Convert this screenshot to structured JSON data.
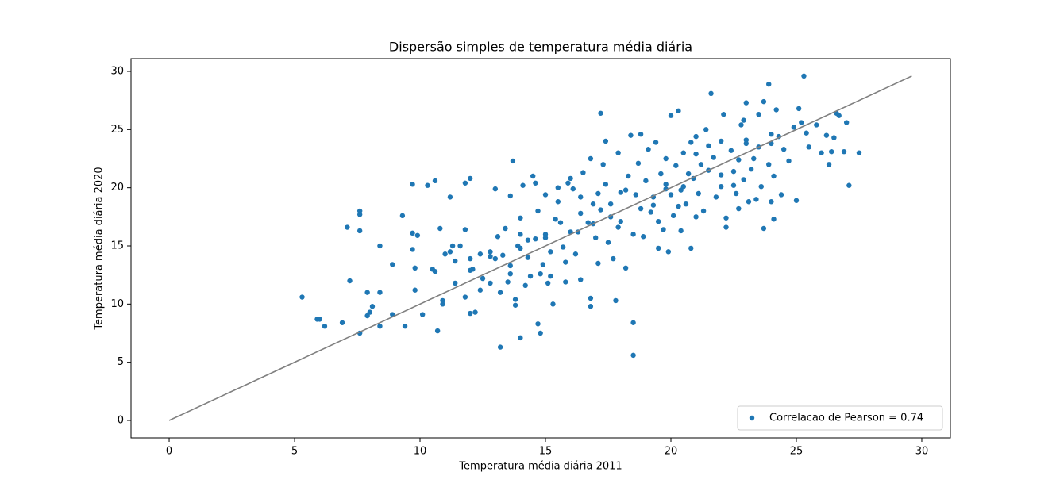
{
  "chart_data": {
    "type": "scatter",
    "title": "Dispersão simples de temperatura média diária",
    "x_label": "Temperatura média diária 2011",
    "y_label": "Temperatura média diária 2020",
    "xlim": [
      -1.52,
      31.14
    ],
    "ylim": [
      -1.5,
      31.09
    ],
    "xticks": [
      0,
      5,
      10,
      15,
      20,
      25,
      30
    ],
    "yticks": [
      0,
      5,
      10,
      15,
      20,
      25,
      30
    ],
    "grid": false,
    "legend": "lower right",
    "series": [
      {
        "name": "Correlacao de Pearson = 0.74",
        "color": "#1f77b4",
        "x": [
          5.3,
          5.9,
          6.0,
          6.2,
          6.9,
          7.1,
          7.2,
          7.6,
          7.6,
          7.6,
          7.6,
          7.9,
          8.0,
          7.9,
          8.1,
          8.4,
          8.4,
          8.4,
          8.9,
          8.9,
          9.3,
          9.4,
          9.7,
          9.7,
          9.7,
          9.8,
          9.8,
          9.9,
          10.1,
          10.3,
          10.6,
          10.6,
          10.7,
          10.9,
          10.9,
          10.8,
          11.2,
          11.3,
          11.2,
          11.4,
          11.4,
          11.6,
          11.8,
          11.8,
          11.8,
          12.0,
          12.0,
          12.1,
          12.0,
          12.2,
          12.4,
          12.4,
          12.5,
          12.8,
          12.8,
          12.8,
          13.0,
          13.1,
          13.2,
          13.2,
          13.3,
          13.4,
          13.5,
          13.6,
          13.6,
          13.6,
          13.7,
          13.8,
          13.8,
          13.9,
          14.0,
          14.0,
          14.0,
          14.0,
          14.1,
          14.2,
          14.3,
          14.4,
          14.5,
          14.6,
          14.6,
          14.7,
          14.8,
          14.7,
          14.8,
          14.9,
          15.0,
          15.0,
          15.1,
          15.2,
          15.2,
          15.3,
          15.4,
          15.5,
          15.6,
          15.5,
          15.7,
          15.8,
          15.8,
          15.9,
          16.0,
          16.1,
          16.2,
          16.3,
          16.4,
          16.4,
          16.5,
          16.7,
          16.8,
          16.8,
          16.8,
          16.9,
          17.0,
          17.1,
          17.1,
          17.2,
          17.2,
          17.3,
          17.4,
          17.4,
          17.5,
          17.6,
          17.7,
          17.8,
          17.9,
          17.9,
          18.0,
          18.2,
          18.3,
          18.4,
          18.5,
          18.5,
          18.5,
          18.6,
          18.7,
          18.8,
          18.8,
          18.9,
          19.0,
          19.1,
          19.2,
          19.3,
          19.4,
          19.5,
          19.6,
          19.7,
          19.8,
          19.8,
          19.9,
          20.0,
          20.0,
          20.1,
          20.2,
          20.3,
          20.4,
          20.4,
          20.5,
          20.6,
          20.7,
          20.8,
          20.8,
          20.9,
          21.0,
          21.0,
          21.1,
          21.2,
          21.3,
          21.4,
          21.5,
          21.6,
          21.7,
          21.8,
          22.0,
          22.0,
          22.1,
          22.2,
          22.2,
          22.4,
          22.5,
          22.6,
          22.7,
          22.7,
          22.8,
          22.9,
          23.0,
          23.0,
          23.1,
          23.2,
          23.3,
          23.4,
          23.5,
          23.5,
          23.6,
          23.7,
          23.7,
          23.9,
          23.9,
          24.0,
          24.0,
          24.1,
          24.1,
          24.2,
          24.3,
          24.4,
          24.5,
          24.7,
          24.9,
          25.0,
          25.1,
          25.2,
          25.3,
          25.4,
          25.5,
          25.8,
          26.0,
          26.2,
          26.3,
          26.4,
          26.5,
          26.6,
          26.7,
          26.9,
          27.0,
          27.1,
          27.5,
          16.0,
          16.9,
          17.6,
          18.0,
          19.3,
          19.8,
          20.5,
          21.0,
          22.0,
          22.5,
          23.0,
          24.0,
          14.3,
          15.0,
          13.0,
          12.0,
          11.0,
          10.5,
          20.3,
          19.5,
          21.5,
          22.9,
          18.2,
          16.4
        ],
        "values": [
          10.6,
          8.7,
          8.7,
          8.1,
          8.4,
          16.6,
          12.0,
          18.0,
          17.7,
          16.3,
          7.5,
          9.0,
          9.3,
          11.0,
          9.8,
          15.0,
          11.0,
          8.1,
          13.4,
          9.1,
          17.6,
          8.1,
          20.3,
          16.1,
          14.7,
          13.1,
          11.2,
          15.9,
          9.1,
          20.2,
          20.6,
          12.8,
          7.7,
          10.0,
          10.3,
          16.5,
          19.2,
          15.0,
          14.5,
          13.7,
          11.8,
          15.0,
          20.4,
          16.4,
          10.6,
          20.8,
          13.9,
          13.0,
          9.2,
          9.3,
          14.3,
          11.2,
          12.2,
          14.5,
          14.1,
          11.8,
          19.9,
          15.8,
          11.0,
          6.3,
          14.2,
          16.5,
          11.9,
          19.3,
          13.3,
          12.6,
          22.3,
          10.4,
          9.9,
          15.0,
          7.1,
          14.8,
          16.0,
          17.4,
          20.2,
          11.6,
          15.5,
          12.4,
          21.0,
          20.4,
          15.6,
          18.0,
          12.6,
          8.3,
          7.5,
          13.4,
          19.4,
          16.0,
          11.8,
          14.5,
          12.4,
          10.0,
          17.3,
          18.8,
          17.0,
          20.0,
          14.9,
          13.6,
          11.9,
          20.4,
          20.8,
          19.9,
          14.3,
          16.2,
          12.1,
          19.2,
          21.3,
          17.0,
          22.5,
          10.5,
          9.8,
          18.6,
          15.7,
          13.5,
          19.5,
          18.1,
          26.4,
          22.0,
          24.0,
          20.3,
          15.3,
          17.5,
          13.9,
          10.3,
          16.6,
          23.0,
          19.6,
          13.1,
          21.0,
          24.5,
          16.0,
          8.4,
          5.6,
          19.4,
          22.1,
          18.2,
          24.6,
          15.8,
          20.6,
          23.3,
          17.9,
          18.5,
          23.9,
          14.8,
          21.2,
          16.4,
          20.3,
          22.5,
          14.5,
          19.4,
          26.2,
          17.6,
          21.9,
          26.6,
          16.3,
          19.8,
          23.0,
          18.6,
          21.2,
          14.8,
          23.9,
          20.8,
          24.4,
          17.5,
          19.5,
          22.0,
          18.0,
          25.0,
          23.6,
          28.1,
          22.6,
          19.2,
          21.1,
          24.0,
          26.3,
          16.6,
          17.4,
          23.2,
          20.2,
          19.5,
          22.4,
          18.2,
          25.4,
          20.7,
          24.1,
          27.3,
          18.8,
          21.6,
          22.5,
          19.0,
          26.3,
          23.5,
          20.1,
          27.4,
          16.5,
          28.9,
          22.0,
          23.8,
          18.8,
          21.0,
          17.3,
          26.7,
          24.4,
          19.4,
          23.3,
          22.3,
          25.2,
          18.9,
          26.8,
          25.6,
          29.6,
          24.7,
          23.5,
          25.4,
          23.0,
          24.5,
          22.0,
          23.1,
          24.3,
          26.4,
          26.2,
          23.1,
          25.6,
          20.2,
          23.0,
          16.2,
          16.9,
          18.6,
          17.1,
          19.2,
          19.9,
          20.1,
          22.9,
          20.1,
          21.4,
          23.8,
          24.6,
          14.0,
          15.7,
          13.9,
          12.9,
          14.3,
          13.0,
          18.4,
          17.1,
          21.5,
          25.8,
          19.8,
          17.8
        ]
      }
    ],
    "reference_line": {
      "x": [
        0,
        29.6
      ],
      "y": [
        0,
        29.6
      ],
      "color": "#808080"
    }
  }
}
